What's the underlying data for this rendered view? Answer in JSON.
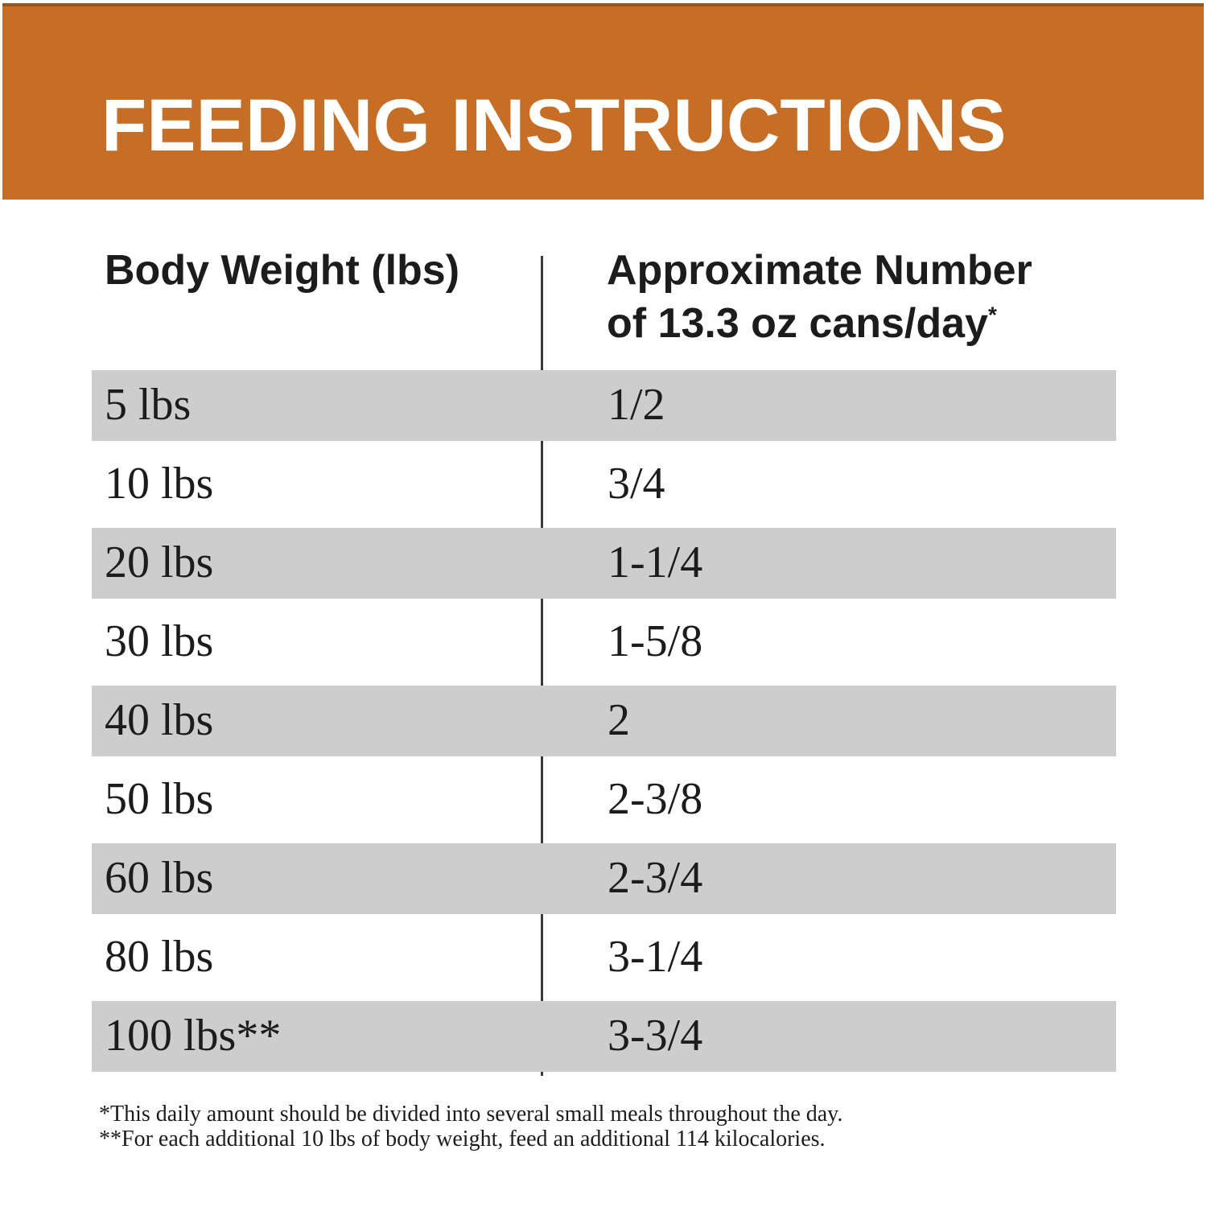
{
  "title": "FEEDING INSTRUCTIONS",
  "table": {
    "col1_header": "Body Weight (lbs)",
    "col2_header_line1": "Approximate Number",
    "col2_header_line2": "of 13.3 oz cans/day",
    "col2_header_marker": "*",
    "rows": [
      {
        "weight": "5 lbs",
        "cans": "1/2"
      },
      {
        "weight": "10 lbs",
        "cans": "3/4"
      },
      {
        "weight": "20 lbs",
        "cans": "1-1/4"
      },
      {
        "weight": "30 lbs",
        "cans": "1-5/8"
      },
      {
        "weight": "40 lbs",
        "cans": "2"
      },
      {
        "weight": "50 lbs",
        "cans": "2-3/8"
      },
      {
        "weight": "60 lbs",
        "cans": "2-3/4"
      },
      {
        "weight": "80 lbs",
        "cans": "3-1/4"
      },
      {
        "weight": "100 lbs**",
        "cans": "3-3/4"
      }
    ]
  },
  "footnotes": [
    "*This daily amount should be divided into several small meals throughout the day.",
    "**For each additional 10 lbs of body weight, feed an additional 114 kilocalories."
  ],
  "colors": {
    "banner_orange": "#C76E26",
    "banner_top_edge": "#9B561E",
    "row_stripe_gray": "#CDCDCD",
    "divider_line": "#3A3A3A",
    "text": "#1C1C1C"
  }
}
